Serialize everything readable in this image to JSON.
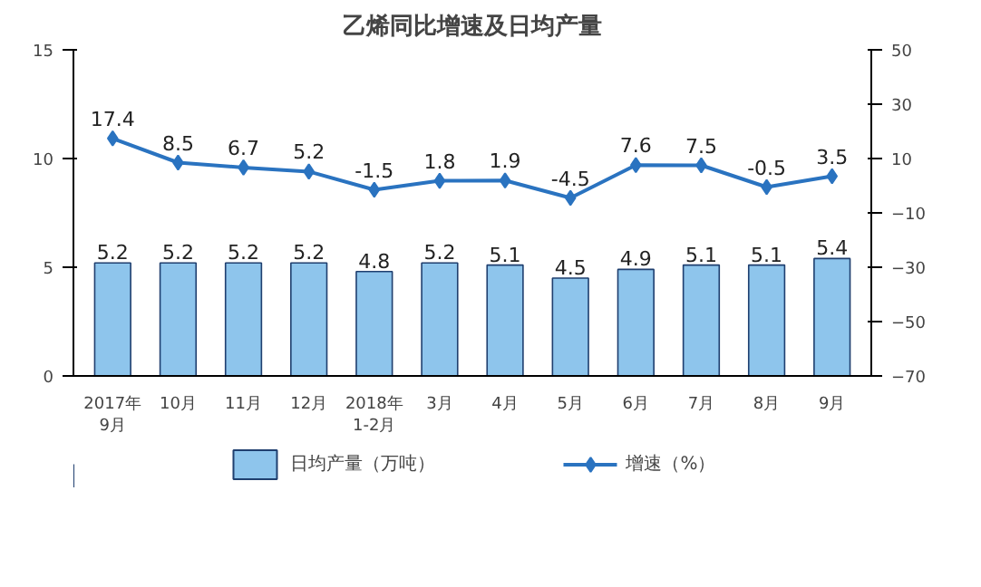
{
  "chart_data": {
    "type": "bar",
    "title": "乙烯同比增速及日均产量",
    "categories": [
      "2017年\n9月",
      "10月",
      "11月",
      "12月",
      "2018年\n1-2月",
      "3月",
      "4月",
      "5月",
      "6月",
      "7月",
      "8月",
      "9月"
    ],
    "series": [
      {
        "name": "日均产量（万吨）",
        "color": "#8ec5ec",
        "values": [
          5.2,
          5.2,
          5.2,
          5.2,
          4.8,
          5.2,
          5.1,
          4.5,
          4.9,
          5.1,
          5.1,
          5.4
        ]
      },
      {
        "name": "增速（%）",
        "type": "line",
        "axis": "y2",
        "color": "#2a73c0",
        "values": [
          17.4,
          8.5,
          6.7,
          5.2,
          -1.5,
          1.8,
          1.9,
          -4.5,
          7.6,
          7.5,
          -0.5,
          3.5
        ]
      }
    ],
    "ylim": [
      0,
      15
    ],
    "yticks": [
      0,
      5,
      10,
      15
    ],
    "y2lim": [
      -70,
      50
    ],
    "y2ticks": [
      -70,
      -50,
      -30,
      -10,
      10,
      30,
      50
    ],
    "data_labels": true,
    "grid": false,
    "legend": "bottom",
    "marker": "diamond"
  }
}
